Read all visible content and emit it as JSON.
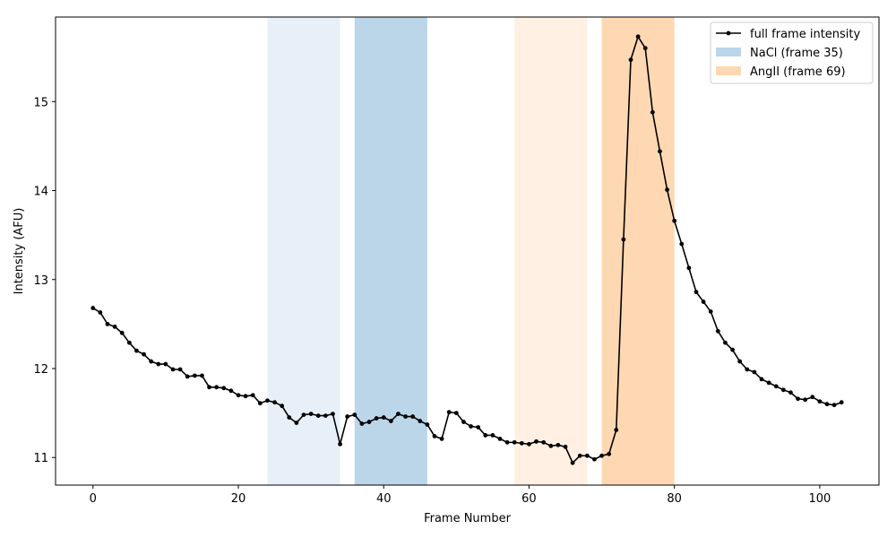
{
  "chart_data": {
    "type": "line",
    "xlabel": "Frame Number",
    "ylabel": "Intensity (AFU)",
    "xlim": [
      -5.15,
      108.15
    ],
    "ylim": [
      10.69,
      15.95
    ],
    "xticks": [
      0,
      20,
      40,
      60,
      80,
      100
    ],
    "yticks": [
      11,
      12,
      13,
      14,
      15
    ],
    "grid": false,
    "legend_position": "top-right",
    "series": [
      {
        "name": "full frame intensity",
        "color": "#000000",
        "marker": "circle",
        "x": [
          0,
          1,
          2,
          3,
          4,
          5,
          6,
          7,
          8,
          9,
          10,
          11,
          12,
          13,
          14,
          15,
          16,
          17,
          18,
          19,
          20,
          21,
          22,
          23,
          24,
          25,
          26,
          27,
          28,
          29,
          30,
          31,
          32,
          33,
          34,
          35,
          36,
          37,
          38,
          39,
          40,
          41,
          42,
          43,
          44,
          45,
          46,
          47,
          48,
          49,
          50,
          51,
          52,
          53,
          54,
          55,
          56,
          57,
          58,
          59,
          60,
          61,
          62,
          63,
          64,
          65,
          66,
          67,
          68,
          69,
          70,
          71,
          72,
          73,
          74,
          75,
          76,
          77,
          78,
          79,
          80,
          81,
          82,
          83,
          84,
          85,
          86,
          87,
          88,
          89,
          90,
          91,
          92,
          93,
          94,
          95,
          96,
          97,
          98,
          99,
          100,
          101,
          102,
          103
        ],
        "y": [
          12.68,
          12.63,
          12.5,
          12.47,
          12.4,
          12.29,
          12.2,
          12.16,
          12.08,
          12.05,
          12.05,
          11.99,
          11.99,
          11.91,
          11.92,
          11.92,
          11.79,
          11.79,
          11.78,
          11.75,
          11.7,
          11.69,
          11.7,
          11.61,
          11.64,
          11.62,
          11.58,
          11.45,
          11.39,
          11.48,
          11.49,
          11.47,
          11.47,
          11.49,
          11.15,
          11.46,
          11.48,
          11.38,
          11.4,
          11.44,
          11.45,
          11.41,
          11.49,
          11.46,
          11.46,
          11.41,
          11.37,
          11.24,
          11.21,
          11.51,
          11.5,
          11.4,
          11.35,
          11.34,
          11.25,
          11.25,
          11.21,
          11.17,
          11.17,
          11.16,
          11.15,
          11.18,
          11.17,
          11.13,
          11.14,
          11.12,
          10.94,
          11.02,
          11.02,
          10.98,
          11.02,
          11.04,
          11.31,
          13.45,
          15.47,
          15.73,
          15.6,
          14.88,
          14.44,
          14.01,
          13.66,
          13.4,
          13.13,
          12.86,
          12.75,
          12.64,
          12.42,
          12.29,
          12.21,
          12.08,
          11.99,
          11.96,
          11.88,
          11.84,
          11.8,
          11.76,
          11.73,
          11.66,
          11.65,
          11.68,
          11.63,
          11.6,
          11.59,
          11.62
        ]
      }
    ],
    "spans": [
      {
        "x0": 24,
        "x1": 34,
        "color": "#e7f0f8"
      },
      {
        "x0": 36,
        "x1": 46,
        "color": "#bbd5e9"
      },
      {
        "x0": 58,
        "x1": 68,
        "color": "#fff0e3"
      },
      {
        "x0": 70,
        "x1": 80,
        "color": "#fed8b2"
      }
    ],
    "legend": [
      {
        "label": "full frame intensity",
        "kind": "line",
        "color": "#000000"
      },
      {
        "label": "NaCl (frame 35)",
        "kind": "patch",
        "color": "#bbd5e9"
      },
      {
        "label": "AngII (frame 69)",
        "kind": "patch",
        "color": "#fed8b2"
      }
    ]
  }
}
